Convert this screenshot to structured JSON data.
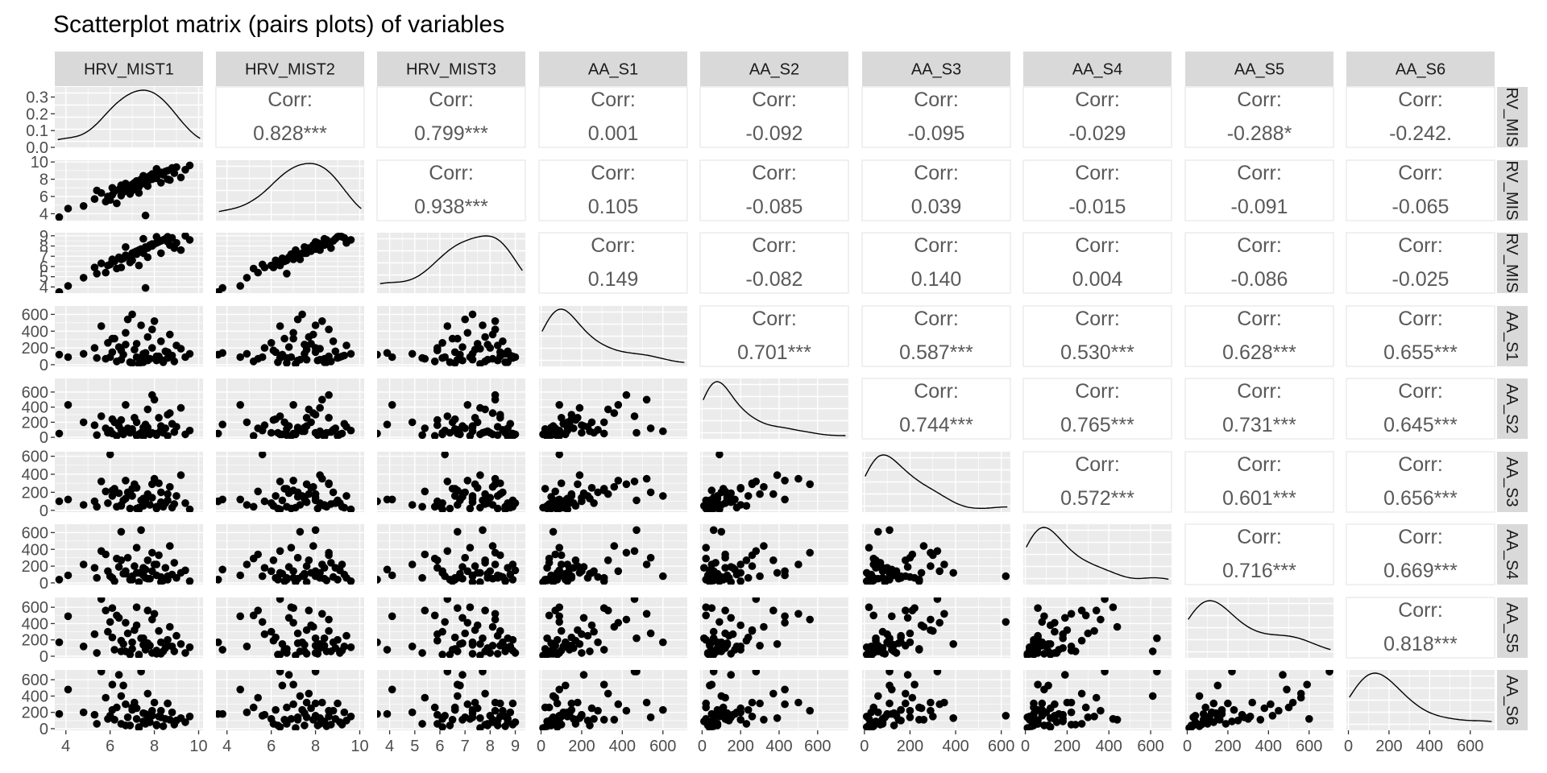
{
  "chart_data": {
    "type": "scatter",
    "title": "Scatterplot matrix (pairs plots) of variables",
    "variables": [
      "HRV_MIST1",
      "HRV_MIST2",
      "HRV_MIST3",
      "AA_S1",
      "AA_S2",
      "AA_S3",
      "AA_S4",
      "AA_S5",
      "AA_S6"
    ],
    "column_strip_labels": [
      "HRV_MIST1",
      "HRV_MIST2",
      "HRV_MIST3",
      "AA_S1",
      "AA_S2",
      "AA_S3",
      "AA_S4",
      "AA_S5",
      "AA_S6"
    ],
    "row_strip_labels": [
      "RV_MIS",
      "RV_MIS",
      "RV_MIS",
      "AA_S1",
      "AA_S2",
      "AA_S3",
      "AA_S4",
      "AA_S5",
      "AA_S6"
    ],
    "corr_heading": "Corr:",
    "correlations": [
      {
        "row": 0,
        "col": 1,
        "value": "0.828***"
      },
      {
        "row": 0,
        "col": 2,
        "value": "0.799***"
      },
      {
        "row": 0,
        "col": 3,
        "value": "0.001"
      },
      {
        "row": 0,
        "col": 4,
        "value": "-0.092"
      },
      {
        "row": 0,
        "col": 5,
        "value": "-0.095"
      },
      {
        "row": 0,
        "col": 6,
        "value": "-0.029"
      },
      {
        "row": 0,
        "col": 7,
        "value": "-0.288*"
      },
      {
        "row": 0,
        "col": 8,
        "value": "-0.242."
      },
      {
        "row": 1,
        "col": 2,
        "value": "0.938***"
      },
      {
        "row": 1,
        "col": 3,
        "value": "0.105"
      },
      {
        "row": 1,
        "col": 4,
        "value": "-0.085"
      },
      {
        "row": 1,
        "col": 5,
        "value": "0.039"
      },
      {
        "row": 1,
        "col": 6,
        "value": "-0.015"
      },
      {
        "row": 1,
        "col": 7,
        "value": "-0.091"
      },
      {
        "row": 1,
        "col": 8,
        "value": "-0.065"
      },
      {
        "row": 2,
        "col": 3,
        "value": "0.149"
      },
      {
        "row": 2,
        "col": 4,
        "value": "-0.082"
      },
      {
        "row": 2,
        "col": 5,
        "value": "0.140"
      },
      {
        "row": 2,
        "col": 6,
        "value": "0.004"
      },
      {
        "row": 2,
        "col": 7,
        "value": "-0.086"
      },
      {
        "row": 2,
        "col": 8,
        "value": "-0.025"
      },
      {
        "row": 3,
        "col": 4,
        "value": "0.701***"
      },
      {
        "row": 3,
        "col": 5,
        "value": "0.587***"
      },
      {
        "row": 3,
        "col": 6,
        "value": "0.530***"
      },
      {
        "row": 3,
        "col": 7,
        "value": "0.628***"
      },
      {
        "row": 3,
        "col": 8,
        "value": "0.655***"
      },
      {
        "row": 4,
        "col": 5,
        "value": "0.744***"
      },
      {
        "row": 4,
        "col": 6,
        "value": "0.765***"
      },
      {
        "row": 4,
        "col": 7,
        "value": "0.731***"
      },
      {
        "row": 4,
        "col": 8,
        "value": "0.645***"
      },
      {
        "row": 5,
        "col": 6,
        "value": "0.572***"
      },
      {
        "row": 5,
        "col": 7,
        "value": "0.601***"
      },
      {
        "row": 5,
        "col": 8,
        "value": "0.656***"
      },
      {
        "row": 6,
        "col": 7,
        "value": "0.716***"
      },
      {
        "row": 6,
        "col": 8,
        "value": "0.669***"
      },
      {
        "row": 7,
        "col": 8,
        "value": "0.818***"
      }
    ],
    "x_axes": [
      {
        "range": [
          3.5,
          10.2
        ],
        "ticks": [
          4,
          6,
          8,
          10
        ]
      },
      {
        "range": [
          3.5,
          10.2
        ],
        "ticks": [
          4,
          6,
          8,
          10
        ]
      },
      {
        "range": [
          3.5,
          9.4
        ],
        "ticks": [
          4,
          5,
          6,
          7,
          8,
          9
        ]
      },
      {
        "range": [
          -10,
          720
        ],
        "ticks": [
          0,
          200,
          400,
          600
        ]
      },
      {
        "range": [
          -10,
          760
        ],
        "ticks": [
          0,
          200,
          400,
          600
        ]
      },
      {
        "range": [
          -10,
          640
        ],
        "ticks": [
          0,
          200,
          400,
          600
        ]
      },
      {
        "range": [
          -10,
          700
        ],
        "ticks": [
          0,
          200,
          400,
          600
        ]
      },
      {
        "range": [
          -10,
          720
        ],
        "ticks": [
          0,
          200,
          400,
          600
        ]
      },
      {
        "range": [
          -10,
          720
        ],
        "ticks": [
          0,
          200,
          400,
          600
        ]
      }
    ],
    "y_axes": [
      {
        "range": [
          0,
          0.36
        ],
        "ticks": [
          0,
          0.1,
          0.2,
          0.3
        ],
        "tick_labels": [
          "0.0",
          "0.1",
          "0.2",
          "0.3"
        ]
      },
      {
        "range": [
          3.2,
          10.2
        ],
        "ticks": [
          4,
          6,
          8,
          10
        ],
        "tick_labels": [
          "4",
          "6",
          "8",
          "10"
        ]
      },
      {
        "range": [
          3.4,
          9.3
        ],
        "ticks": [
          4,
          5,
          6,
          7,
          8,
          9
        ],
        "tick_labels": [
          "4",
          "5",
          "6",
          "7",
          "8",
          "9"
        ]
      },
      {
        "range": [
          -20,
          700
        ],
        "ticks": [
          0,
          200,
          400,
          600
        ],
        "tick_labels": [
          "0",
          "200",
          "400",
          "600"
        ]
      },
      {
        "range": [
          -20,
          780
        ],
        "ticks": [
          0,
          200,
          400,
          600
        ],
        "tick_labels": [
          "0",
          "200",
          "400",
          "600"
        ]
      },
      {
        "range": [
          -20,
          650
        ],
        "ticks": [
          0,
          200,
          400,
          600
        ],
        "tick_labels": [
          "0",
          "200",
          "400",
          "600"
        ]
      },
      {
        "range": [
          -20,
          700
        ],
        "ticks": [
          0,
          200,
          400,
          600
        ],
        "tick_labels": [
          "0",
          "200",
          "400",
          "600"
        ]
      },
      {
        "range": [
          -20,
          720
        ],
        "ticks": [
          0,
          200,
          400,
          600
        ],
        "tick_labels": [
          "0",
          "200",
          "400",
          "600"
        ]
      },
      {
        "range": [
          -20,
          720
        ],
        "ticks": [
          0,
          200,
          400,
          600
        ],
        "tick_labels": [
          "0",
          "200",
          "400",
          "600"
        ]
      }
    ],
    "observations": [
      [
        3.7,
        3.6,
        3.5,
        120,
        50,
        100,
        40,
        170,
        180
      ],
      [
        4.1,
        4.6,
        4.1,
        90,
        430,
        120,
        90,
        490,
        480
      ],
      [
        4.8,
        4.9,
        4.9,
        130,
        200,
        60,
        220,
        120,
        200
      ],
      [
        5.4,
        6.7,
        5.3,
        80,
        30,
        40,
        60,
        40,
        60
      ],
      [
        5.6,
        6.4,
        6.3,
        460,
        280,
        320,
        380,
        700,
        700
      ],
      [
        5.8,
        5.4,
        5.4,
        70,
        120,
        210,
        340,
        560,
        380
      ],
      [
        5.9,
        6.0,
        6.1,
        260,
        60,
        80,
        140,
        300,
        120
      ],
      [
        6.0,
        5.6,
        6.2,
        90,
        90,
        620,
        80,
        420,
        160
      ],
      [
        6.1,
        6.2,
        6.6,
        150,
        240,
        160,
        60,
        230,
        230
      ],
      [
        6.2,
        6.6,
        6.5,
        310,
        200,
        240,
        20,
        80,
        110
      ],
      [
        6.3,
        5.2,
        5.8,
        40,
        20,
        40,
        290,
        500,
        260
      ],
      [
        6.4,
        6.8,
        6.9,
        210,
        150,
        190,
        190,
        470,
        660
      ],
      [
        6.5,
        7.3,
        6.7,
        60,
        100,
        60,
        610,
        60,
        400
      ],
      [
        6.6,
        6.5,
        6.8,
        120,
        40,
        110,
        110,
        150,
        530
      ],
      [
        6.7,
        7.0,
        7.1,
        380,
        430,
        330,
        140,
        410,
        300
      ],
      [
        6.8,
        7.2,
        7.0,
        540,
        120,
        200,
        300,
        280,
        140
      ],
      [
        6.9,
        6.3,
        6.4,
        30,
        60,
        20,
        40,
        20,
        40
      ],
      [
        7.0,
        7.4,
        7.3,
        600,
        80,
        160,
        80,
        170,
        230
      ],
      [
        7.1,
        7.6,
        7.4,
        180,
        260,
        290,
        200,
        320,
        320
      ],
      [
        7.2,
        6.9,
        7.2,
        90,
        20,
        20,
        420,
        600,
        120
      ],
      [
        7.2,
        7.8,
        7.5,
        250,
        200,
        250,
        120,
        380,
        250
      ],
      [
        7.3,
        7.1,
        7.6,
        10,
        40,
        30,
        10,
        10,
        10
      ],
      [
        7.4,
        8.0,
        7.7,
        470,
        60,
        110,
        630,
        220,
        700
      ],
      [
        7.5,
        7.5,
        7.3,
        130,
        130,
        130,
        90,
        140,
        190
      ],
      [
        7.6,
        8.2,
        7.9,
        60,
        80,
        80,
        60,
        100,
        60
      ],
      [
        7.6,
        3.8,
        3.9,
        140,
        170,
        120,
        160,
        80,
        180
      ],
      [
        7.7,
        7.7,
        7.8,
        330,
        370,
        180,
        270,
        560,
        430
      ],
      [
        7.8,
        8.4,
        8.1,
        70,
        40,
        60,
        50,
        130,
        80
      ],
      [
        7.9,
        8.0,
        8.0,
        200,
        60,
        140,
        140,
        40,
        160
      ],
      [
        8.0,
        8.3,
        8.2,
        520,
        500,
        350,
        220,
        520,
        320
      ],
      [
        8.1,
        8.1,
        8.3,
        50,
        30,
        20,
        90,
        30,
        40
      ],
      [
        8.2,
        8.6,
        8.4,
        100,
        260,
        300,
        330,
        310,
        150
      ],
      [
        8.3,
        8.8,
        8.5,
        280,
        100,
        200,
        70,
        170,
        220
      ],
      [
        8.4,
        8.5,
        8.6,
        30,
        60,
        40,
        30,
        60,
        30
      ],
      [
        8.5,
        8.9,
        8.7,
        160,
        120,
        80,
        180,
        100,
        120
      ],
      [
        8.6,
        9.0,
        8.9,
        80,
        20,
        110,
        40,
        200,
        310
      ],
      [
        8.7,
        7.9,
        8.1,
        360,
        320,
        260,
        440,
        360,
        110
      ],
      [
        8.8,
        9.3,
        8.8,
        110,
        180,
        30,
        100,
        120,
        200
      ],
      [
        8.9,
        8.7,
        7.8,
        40,
        70,
        70,
        240,
        60,
        50
      ],
      [
        9.0,
        9.4,
        8.3,
        230,
        140,
        160,
        60,
        250,
        100
      ],
      [
        9.2,
        8.2,
        7.6,
        190,
        390,
        390,
        120,
        150,
        130
      ],
      [
        9.4,
        9.1,
        9.0,
        90,
        40,
        80,
        150,
        40,
        80
      ],
      [
        9.6,
        9.6,
        8.6,
        130,
        90,
        10,
        20,
        110,
        150
      ],
      [
        7.0,
        6.7,
        6.6,
        20,
        110,
        240,
        40,
        90,
        260
      ],
      [
        6.5,
        6.1,
        5.9,
        170,
        230,
        50,
        270,
        190,
        60
      ],
      [
        7.9,
        8.6,
        8.2,
        420,
        560,
        290,
        360,
        450,
        220
      ],
      [
        8.3,
        7.6,
        7.3,
        60,
        150,
        90,
        10,
        30,
        140
      ],
      [
        6.7,
        7.5,
        7.9,
        240,
        80,
        130,
        110,
        60,
        40
      ],
      [
        7.5,
        8.4,
        8.7,
        30,
        10,
        50,
        180,
        220,
        90
      ],
      [
        8.6,
        8.0,
        8.4,
        150,
        300,
        180,
        80,
        130,
        310
      ],
      [
        6.1,
        7.0,
        6.7,
        310,
        50,
        220,
        60,
        590,
        540
      ],
      [
        7.3,
        6.4,
        6.1,
        80,
        40,
        10,
        120,
        20,
        20
      ],
      [
        5.3,
        5.7,
        5.9,
        200,
        160,
        100,
        180,
        270,
        170
      ],
      [
        8.1,
        9.2,
        8.9,
        100,
        50,
        40,
        220,
        70,
        50
      ],
      [
        7.7,
        7.2,
        6.9,
        50,
        130,
        150,
        50,
        160,
        110
      ]
    ]
  }
}
